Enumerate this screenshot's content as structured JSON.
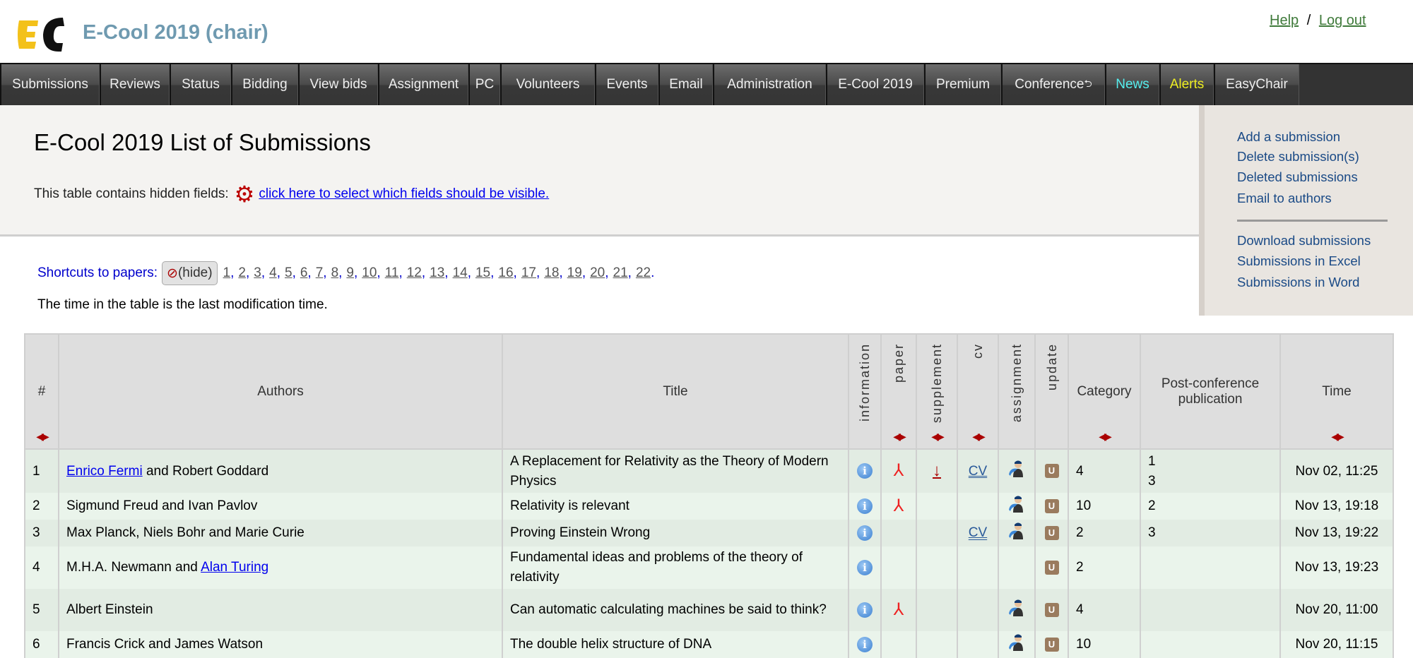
{
  "header": {
    "app_title": "E-Cool 2019 (chair)",
    "logo_text": "EC",
    "help": "Help",
    "separator": "/",
    "logout": "Log out"
  },
  "nav": [
    "Submissions",
    "Reviews",
    "Status",
    "Bidding",
    "View bids",
    "Assignment",
    "PC",
    "Volunteers",
    "Events",
    "Email",
    "Administration",
    "E-Cool 2019",
    "Premium",
    "Conference",
    "News",
    "Alerts",
    "EasyChair"
  ],
  "nav_colors": {
    "News": "#55eeee",
    "Alerts": "#eeee22",
    "default": "#eeeeee"
  },
  "page": {
    "title": "E-Cool 2019 List of Submissions",
    "hidden_fields_text": "This table contains hidden fields:",
    "hidden_fields_link": "click here to select which fields should be visible.",
    "shortcuts_label": "Shortcuts to papers:",
    "hide_label": "(hide)",
    "shortcuts": [
      "1",
      "2",
      "3",
      "4",
      "5",
      "6",
      "7",
      "8",
      "9",
      "10",
      "11",
      "12",
      "13",
      "14",
      "15",
      "16",
      "17",
      "18",
      "19",
      "20",
      "21",
      "22"
    ],
    "time_note": "The time in the table is the last modification time."
  },
  "side_menu": {
    "group1": [
      "Add a submission",
      "Delete submission(s)",
      "Deleted submissions",
      "Email to authors"
    ],
    "group2": [
      "Download submissions",
      "Submissions in Excel",
      "Submissions in Word"
    ]
  },
  "table": {
    "headers": {
      "num": "#",
      "authors": "Authors",
      "title": "Title",
      "information": "information",
      "paper": "paper",
      "supplement": "supplement",
      "cv": "cv",
      "assignment": "assignment",
      "update": "update",
      "category": "Category",
      "post": "Post-conference publication",
      "time": "Time"
    },
    "cv_label": "CV",
    "update_label": "U",
    "info_label": "i",
    "rows": [
      {
        "num": "1",
        "authors": [
          {
            "text": "Enrico Fermi",
            "link": true
          },
          {
            "text": " and Robert Goddard"
          }
        ],
        "title": "A Replacement for Relativity as the Theory of Modern Physics",
        "paper": true,
        "supplement": true,
        "cv": true,
        "assignment": true,
        "category": "4",
        "post": [
          "1",
          "3"
        ],
        "time": "Nov 02, 11:25"
      },
      {
        "num": "2",
        "authors": [
          {
            "text": "Sigmund Freud and Ivan Pavlov"
          }
        ],
        "title": "Relativity is relevant",
        "paper": true,
        "supplement": false,
        "cv": false,
        "assignment": true,
        "category": "10",
        "post": [
          "2"
        ],
        "time": "Nov 13, 19:18"
      },
      {
        "num": "3",
        "authors": [
          {
            "text": "Max Planck, Niels Bohr and Marie Curie"
          }
        ],
        "title": "Proving Einstein Wrong",
        "paper": false,
        "supplement": false,
        "cv": true,
        "assignment": true,
        "category": "2",
        "post": [
          "3"
        ],
        "time": "Nov 13, 19:22"
      },
      {
        "num": "4",
        "authors": [
          {
            "text": "M.H.A. Newmann and "
          },
          {
            "text": "Alan Turing",
            "link": true
          }
        ],
        "title": "Fundamental ideas and problems of the theory of relativity",
        "paper": false,
        "supplement": false,
        "cv": false,
        "assignment": false,
        "category": "2",
        "post": [],
        "time": "Nov 13, 19:23"
      },
      {
        "num": "5",
        "authors": [
          {
            "text": "Albert Einstein"
          }
        ],
        "title": "Can automatic calculating machines be said to think?",
        "paper": true,
        "supplement": false,
        "cv": false,
        "assignment": true,
        "category": "4",
        "post": [],
        "time": "Nov 20, 11:00"
      },
      {
        "num": "6",
        "authors": [
          {
            "text": "Francis Crick and James Watson"
          }
        ],
        "title": "The double helix structure of DNA",
        "paper": false,
        "supplement": false,
        "cv": false,
        "assignment": true,
        "category": "10",
        "post": [],
        "time": "Nov 20, 11:15"
      }
    ]
  }
}
